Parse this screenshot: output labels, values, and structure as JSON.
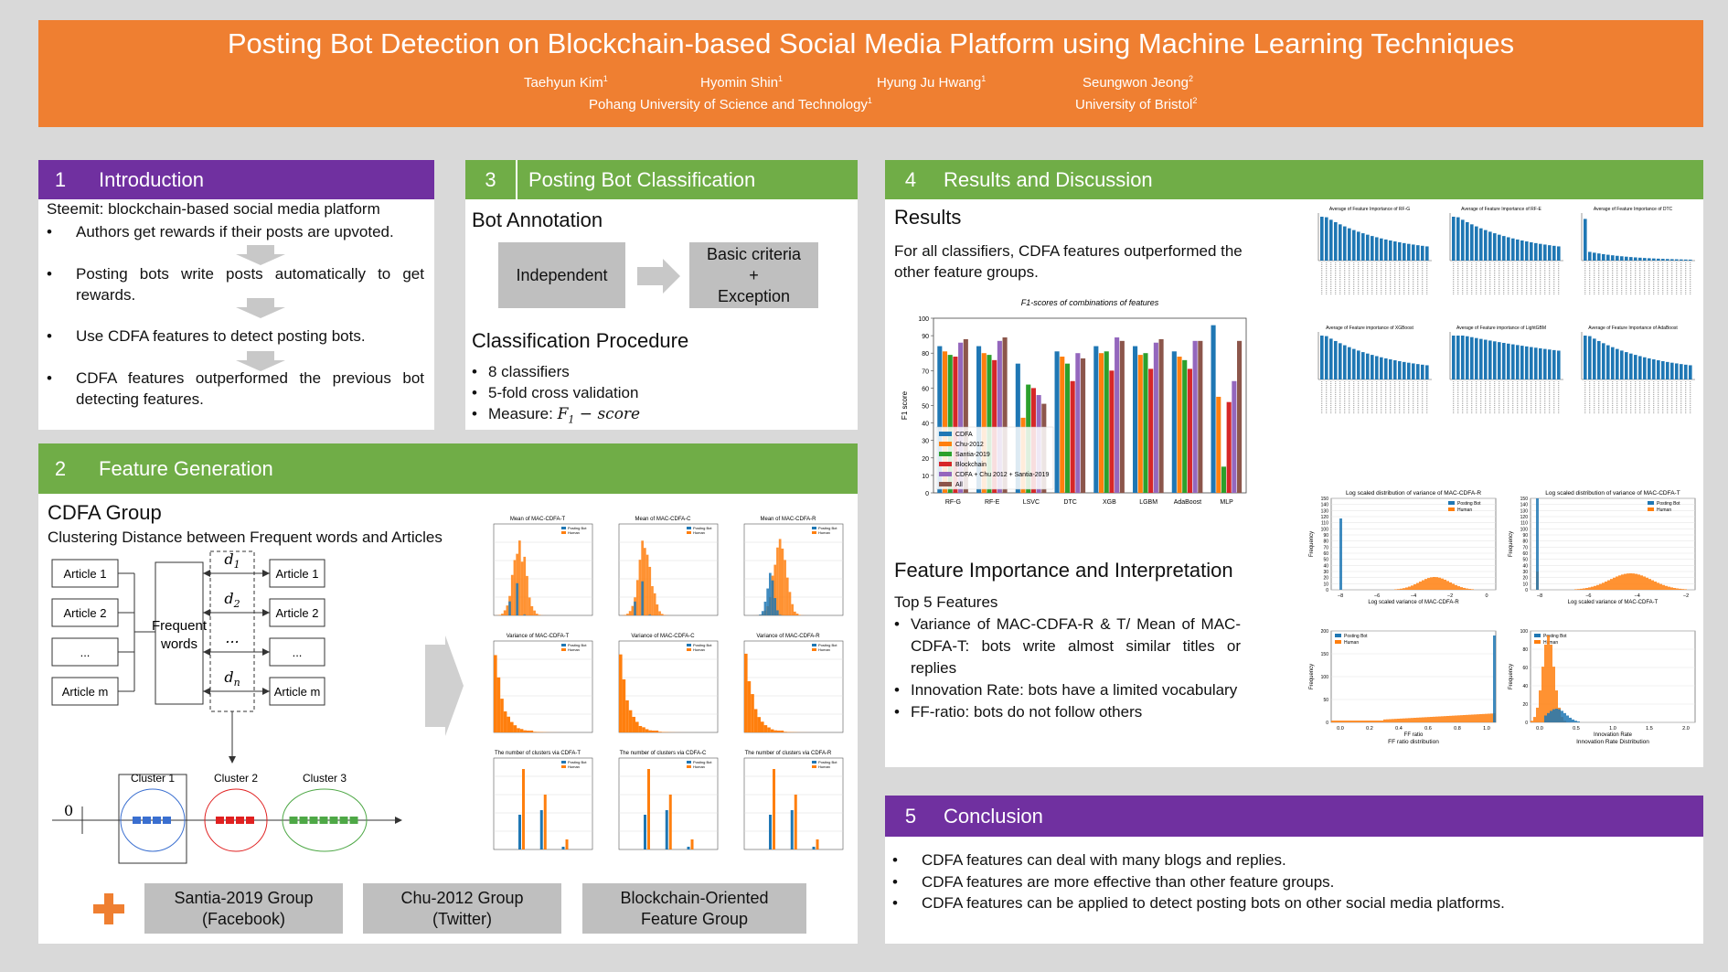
{
  "header": {
    "title": "Posting Bot Detection on Blockchain-based Social Media Platform using Machine Learning Techniques",
    "authors": [
      {
        "name": "Taehyun Kim",
        "aff": "1"
      },
      {
        "name": "Hyomin Shin",
        "aff": "1"
      },
      {
        "name": "Hyung Ju Hwang",
        "aff": "1"
      },
      {
        "name": "Seungwon Jeong",
        "aff": "2"
      }
    ],
    "affiliations": [
      {
        "name": "Pohang University of Science and Technology",
        "aff": "1"
      },
      {
        "name": "University of Bristol",
        "aff": "2"
      }
    ]
  },
  "intro": {
    "num": "1",
    "title": "Introduction",
    "lead": "Steemit: blockchain-based social media platform",
    "bullets": [
      "Authors get rewards if their posts are upvoted.",
      "Posting bots write posts automatically to get rewards.",
      "Use CDFA features to detect posting bots.",
      "CDFA features outperformed the previous bot detecting features."
    ]
  },
  "classification": {
    "num": "3",
    "title": "Posting Bot Classification",
    "annotation_heading": "Bot Annotation",
    "box_independent": "Independent",
    "box_criteria_1": "Basic criteria",
    "box_criteria_plus": "+",
    "box_criteria_2": "Exception",
    "procedure_heading": "Classification Procedure",
    "procedure_items": [
      "8 classifiers",
      "5-fold cross validation",
      "Measure: "
    ],
    "measure_formula": "F",
    "measure_sub": "1",
    "measure_tail": " − score"
  },
  "feature_generation": {
    "num": "2",
    "title": "Feature Generation",
    "group_heading": "CDFA Group",
    "group_sub": "Clustering Distance between Frequent words and Articles",
    "articles_left": [
      "Article 1",
      "Article 2",
      "...",
      "Article m"
    ],
    "articles_right": [
      "Article 1",
      "Article 2",
      "...",
      "Article m"
    ],
    "center": "Frequent words",
    "distances": [
      "d1",
      "d2",
      "...",
      "dn"
    ],
    "clusters": [
      "Cluster 1",
      "Cluster 2",
      "Cluster 3"
    ],
    "axis_zero": "0",
    "groups": [
      "Santia-2019 Group (Facebook)",
      "Chu-2012 Group (Twitter)",
      "Blockchain-Oriented Feature Group"
    ],
    "plot_titles": [
      "Mean of MAC-CDFA-T",
      "Mean of MAC-CDFA-C",
      "Mean of MAC-CDFA-R",
      "Variance of MAC-CDFA-T",
      "Variance of MAC-CDFA-C",
      "Variance of MAC-CDFA-R",
      "The number of clusters via CDFA-T",
      "The number of clusters via CDFA-C",
      "The number of clusters via CDFA-R"
    ],
    "legend": [
      "Posting Bot",
      "Human"
    ]
  },
  "results": {
    "num": "4",
    "title": "Results and Discussion",
    "results_heading": "Results",
    "results_text": "For all classifiers, CDFA features outperformed the other feature groups.",
    "fi_heading": "Feature Importance and Interpretation",
    "top5": "Top 5 Features",
    "fi_bullets": [
      "Variance of MAC-CDFA-R & T/ Mean of MAC-CDFA-T: bots write almost similar titles or replies",
      "Innovation Rate: bots have a limited vocabulary",
      "FF-ratio: bots do not follow others"
    ],
    "importance_titles": [
      "Average of Feature Importance of RF-G",
      "Average of Feature Importance of RF-E",
      "Average of Feature Importance of DTC",
      "Average of Feature importance of XGBoost",
      "Average of Feature importance of LightGBM",
      "Average of Feature Importance of AdaBoost"
    ],
    "dist_titles": [
      "Log scaled distribution of variance of MAC-CDFA-R",
      "Log scaled distribution of variance of MAC-CDFA-T",
      "FF ratio distribution",
      "Innovation Rate Distribution"
    ],
    "dist_xlabels": [
      "Log scaled variance of MAC-CDFA-R",
      "Log scaled variance of MAC-CDFA-T",
      "FF ratio",
      "Innovation Rate"
    ],
    "dist_ylabel": "Frequency"
  },
  "conclusion": {
    "num": "5",
    "title": "Conclusion",
    "bullets": [
      "CDFA features can deal with many blogs and replies.",
      "CDFA features are more effective than other feature groups.",
      "CDFA features can be applied to detect posting bots on other social media platforms."
    ]
  },
  "colors": {
    "orange": "#ef7f31",
    "purple": "#7030a0",
    "green": "#70ad47",
    "blue": "#1f77b4",
    "bar_orange": "#ff7f0e",
    "bar_green": "#2ca02c",
    "bar_red": "#d62728",
    "bar_purple": "#9467bd",
    "bar_brown": "#8c564b"
  },
  "chart_data": {
    "type": "bar",
    "title": "F1-scores of combinations of features",
    "ylabel": "F1 score",
    "ylim": [
      0,
      100
    ],
    "categories": [
      "RF-G",
      "RF-E",
      "LSVC",
      "DTC",
      "XGB",
      "LGBM",
      "AdaBoost",
      "MLP"
    ],
    "series": [
      {
        "name": "CDFA",
        "values": [
          84,
          84,
          74,
          81,
          84,
          84,
          81,
          96
        ]
      },
      {
        "name": "Chu-2012",
        "values": [
          81,
          80,
          43,
          78,
          80,
          79,
          78,
          55
        ]
      },
      {
        "name": "Santia-2019",
        "values": [
          79,
          79,
          62,
          74,
          81,
          80,
          76,
          15
        ]
      },
      {
        "name": "Blockchain",
        "values": [
          78,
          76,
          60,
          64,
          70,
          71,
          71,
          52
        ]
      },
      {
        "name": "CDFA + Chu 2012 + Santia-2019",
        "values": [
          86,
          87,
          56,
          80,
          89,
          86,
          87,
          64
        ]
      },
      {
        "name": "All",
        "values": [
          88,
          89,
          51,
          77,
          87,
          88,
          87,
          87
        ]
      }
    ],
    "legend": "bottom-left"
  }
}
